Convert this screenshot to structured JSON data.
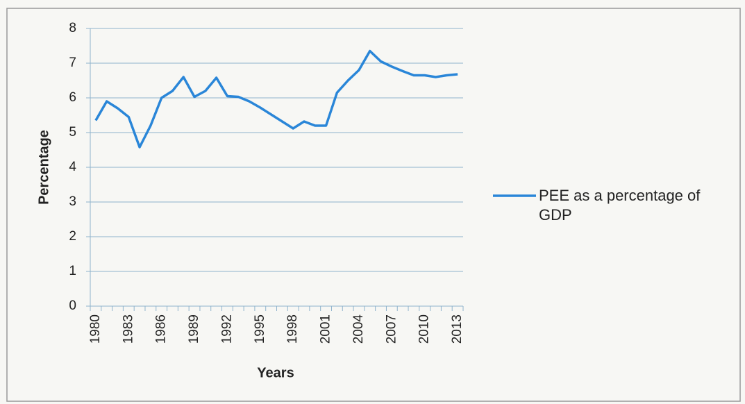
{
  "chart_data": {
    "type": "line",
    "x_label": "Years",
    "y_label": "Percentage",
    "categories": [
      "1980",
      null,
      null,
      "1983",
      null,
      null,
      "1986",
      null,
      null,
      "1989",
      null,
      null,
      "1992",
      null,
      null,
      "1995",
      null,
      null,
      "1998",
      null,
      null,
      "2001",
      null,
      null,
      "2004",
      null,
      null,
      "2007",
      null,
      null,
      "2010",
      null,
      null,
      "2013"
    ],
    "series": [
      {
        "name": "PEE as a percentage of GDP",
        "color": "#2a86d8",
        "values": [
          5.35,
          5.9,
          5.7,
          5.45,
          4.58,
          5.2,
          6.0,
          6.2,
          6.6,
          6.03,
          6.2,
          6.58,
          6.05,
          6.03,
          5.9,
          5.72,
          5.52,
          5.32,
          5.12,
          5.32,
          5.2,
          5.2,
          6.15,
          6.5,
          6.8,
          7.35,
          7.05,
          6.9,
          6.77,
          6.65,
          6.65,
          6.6,
          6.65,
          6.68
        ]
      }
    ],
    "ylim": [
      0,
      8
    ],
    "yticks": [
      0,
      1,
      2,
      3,
      4,
      5,
      6,
      7,
      8
    ],
    "grid": true,
    "legend": "right"
  }
}
